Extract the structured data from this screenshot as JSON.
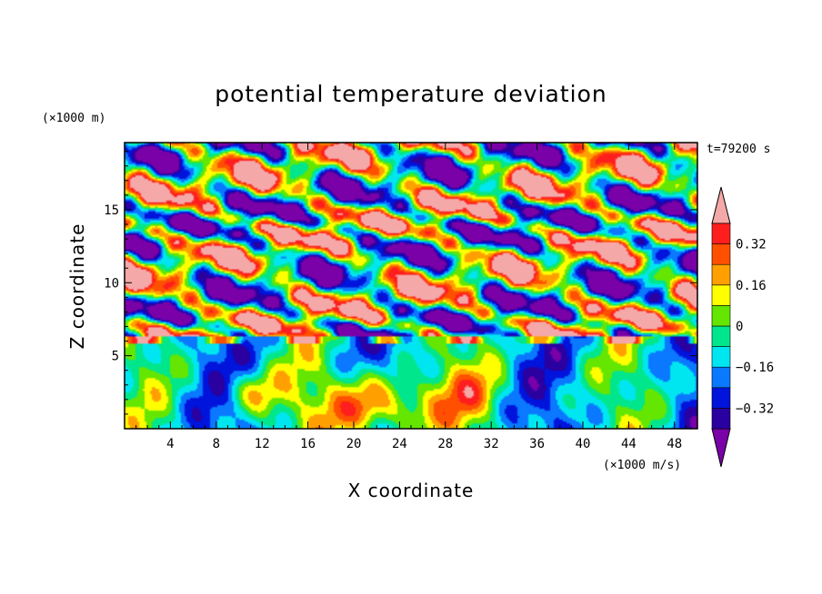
{
  "chart_data": {
    "type": "heatmap",
    "title": "potential temperature deviation",
    "xlabel": "X coordinate",
    "ylabel": "Z coordinate",
    "x_unit": "(×1000 m/s)",
    "y_unit": "(×1000 m)",
    "time_label": "t=79200 s",
    "xlim": [
      0,
      50
    ],
    "ylim": [
      0,
      19.6
    ],
    "x_ticks": [
      4,
      8,
      12,
      16,
      20,
      24,
      28,
      32,
      36,
      40,
      44,
      48
    ],
    "y_ticks": [
      5,
      10,
      15
    ],
    "colorbar": {
      "levels": [
        -0.4,
        -0.32,
        -0.24,
        -0.16,
        -0.08,
        0,
        0.08,
        0.16,
        0.24,
        0.32,
        0.4
      ],
      "tick_labels": [
        "0.32",
        "0.16",
        "0",
        "−0.16",
        "−0.32"
      ],
      "tick_values": [
        0.32,
        0.16,
        0,
        -0.16,
        -0.32
      ],
      "colors": [
        "#7a00a8",
        "#2a00a0",
        "#0014dc",
        "#0a78ff",
        "#00e6f0",
        "#00e68c",
        "#64e600",
        "#ffff00",
        "#ffa000",
        "#ff5000",
        "#ff1e1e",
        "#f5a8a8"
      ],
      "extend": "both"
    }
  }
}
